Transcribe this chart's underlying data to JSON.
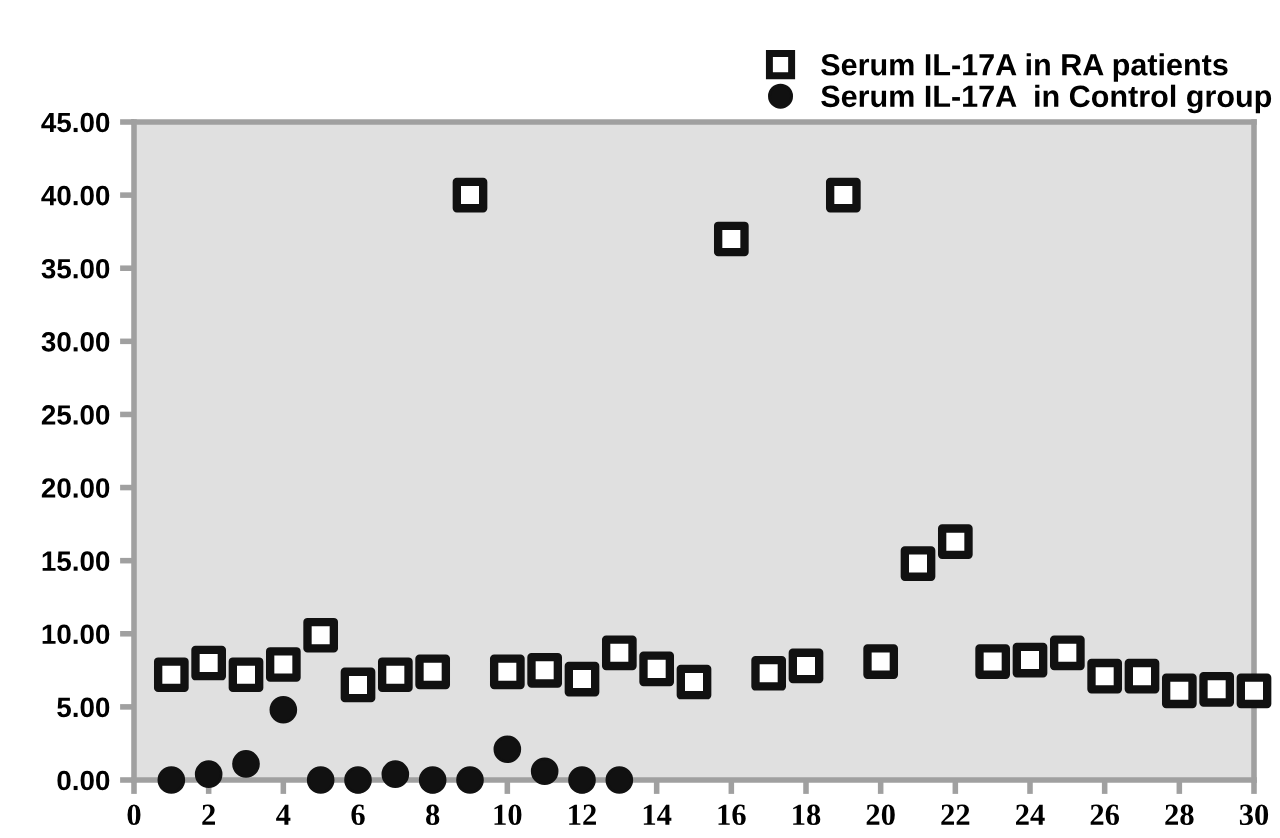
{
  "chart_data": {
    "type": "scatter",
    "xlim": [
      0,
      30
    ],
    "xticks": [
      0,
      2,
      4,
      6,
      8,
      10,
      12,
      14,
      16,
      18,
      20,
      22,
      24,
      26,
      28,
      30
    ],
    "ylim": [
      0,
      45
    ],
    "yticks": [
      {
        "value": 0,
        "label": "0.00"
      },
      {
        "value": 5,
        "label": "5.00"
      },
      {
        "value": 10,
        "label": "10.00"
      },
      {
        "value": 15,
        "label": "15.00"
      },
      {
        "value": 20,
        "label": "20.00"
      },
      {
        "value": 25,
        "label": "25.00"
      },
      {
        "value": 30,
        "label": "30.00"
      },
      {
        "value": 35,
        "label": "35.00"
      },
      {
        "value": 40,
        "label": "40.00"
      },
      {
        "value": 45,
        "label": "45.00"
      }
    ],
    "grid": false,
    "legend": "top right",
    "series": [
      {
        "name": "Serum IL-17A in RA patients",
        "color": "#111111",
        "marker": "square",
        "x": [
          1,
          2,
          3,
          4,
          5,
          6,
          7,
          8,
          9,
          10,
          11,
          12,
          13,
          14,
          15,
          16,
          17,
          18,
          19,
          20,
          21,
          22,
          23,
          24,
          25,
          26,
          27,
          28,
          29,
          30
        ],
        "values": [
          7.2,
          8.0,
          7.2,
          7.9,
          9.9,
          6.5,
          7.2,
          7.4,
          40,
          7.4,
          7.5,
          6.9,
          8.7,
          7.6,
          6.7,
          37,
          7.3,
          7.8,
          40,
          8.1,
          14.8,
          16.3,
          8.1,
          8.2,
          8.7,
          7.1,
          7.1,
          6.1,
          6.2,
          6.1
        ]
      },
      {
        "name": "Serum IL-17A  in Control group",
        "color": "#111111",
        "marker": "circle",
        "x": [
          1,
          2,
          3,
          4,
          5,
          6,
          7,
          8,
          9,
          10,
          11,
          12,
          13
        ],
        "values": [
          0,
          0.4,
          1.1,
          4.8,
          0,
          0,
          0.4,
          0,
          0,
          2.1,
          0.6,
          0,
          0
        ]
      }
    ]
  }
}
